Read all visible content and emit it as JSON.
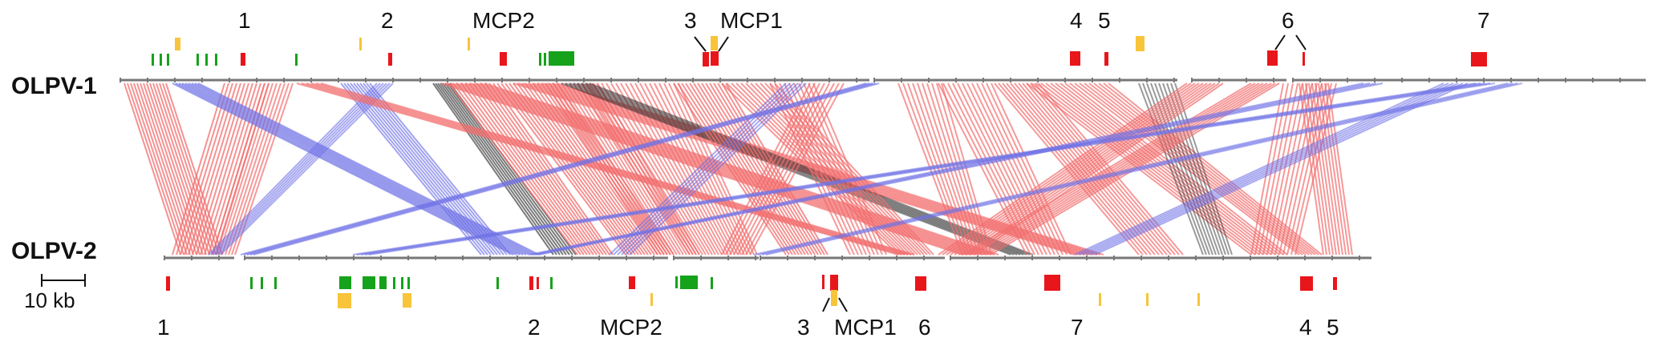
{
  "genomes": {
    "top": "OLPV-1",
    "bottom": "OLPV-2"
  },
  "scale_bar": {
    "label": "10 kb"
  },
  "top_gene_labels": [
    "1",
    "2",
    "MCP2",
    "3",
    "MCP1",
    "4",
    "5",
    "6",
    "7"
  ],
  "bottom_gene_labels": [
    "1",
    "2",
    "MCP2",
    "3",
    "MCP1",
    "6",
    "7",
    "4",
    "5"
  ],
  "colors": {
    "red_gene": "#e8161b",
    "green_gene": "#16a21b",
    "yellow_gene": "#f7c43a",
    "forward_match": "#f26d6d",
    "reverse_match": "#6f72e6",
    "strong_match": "#222222",
    "backbone": "#777777"
  }
}
